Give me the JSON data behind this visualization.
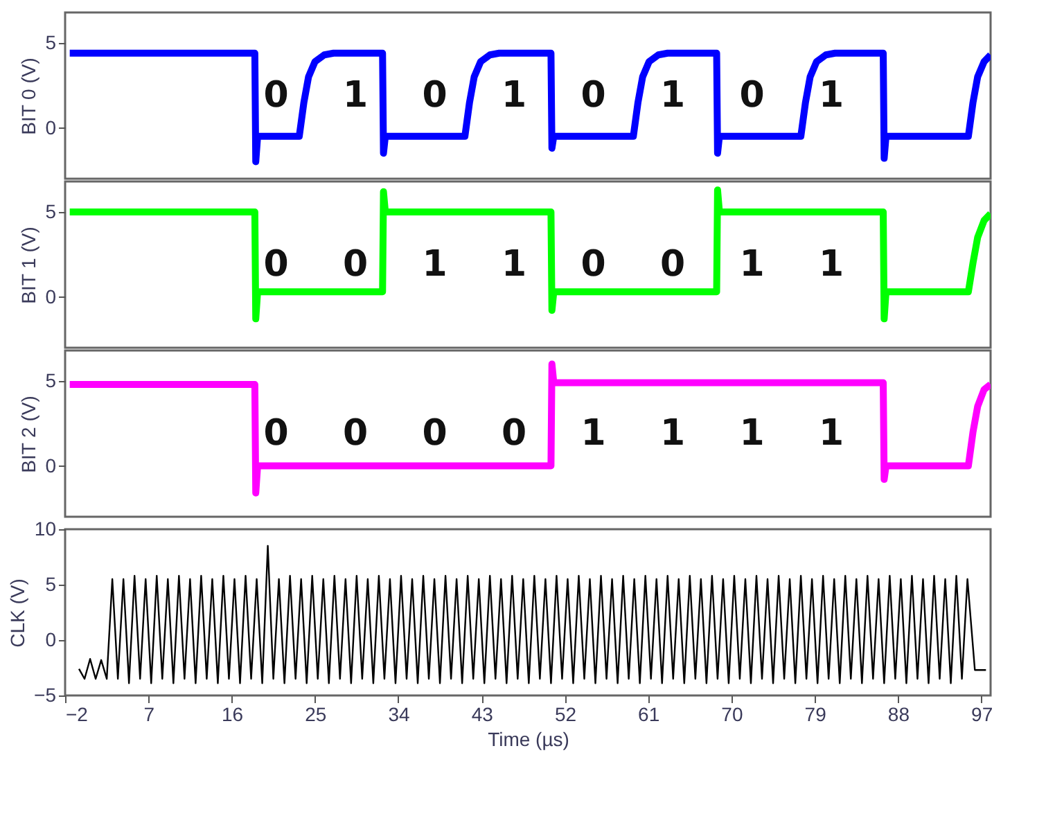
{
  "chart_data": [
    {
      "type": "line",
      "ylabel": "BIT 0 (V)",
      "xlim": [
        -2,
        98
      ],
      "ylim": [
        -3,
        6.8
      ],
      "yticks": [
        0,
        5
      ],
      "tick_labels": "y",
      "series": [
        {
          "color": "#0000ff",
          "x": [
            -1.5,
            18.5,
            18.6,
            18.8,
            23.3,
            23.8,
            24.3,
            25.0,
            26.0,
            27.0,
            32.3,
            32.4,
            32.6,
            41.2,
            41.7,
            42.2,
            42.9,
            43.9,
            44.9,
            50.5,
            50.6,
            50.8,
            59.4,
            59.9,
            60.4,
            61.1,
            62.1,
            63.1,
            68.4,
            68.5,
            68.7,
            77.5,
            78.0,
            78.5,
            79.2,
            80.2,
            81.2,
            86.4,
            86.5,
            86.7,
            95.6,
            96.1,
            96.6,
            97.3,
            98.0
          ],
          "values": [
            4.4,
            4.4,
            -2.0,
            -0.5,
            -0.5,
            1.5,
            3.0,
            3.9,
            4.3,
            4.4,
            4.4,
            -1.5,
            -0.5,
            -0.5,
            1.5,
            3.0,
            3.9,
            4.3,
            4.4,
            4.4,
            -1.2,
            -0.5,
            -0.5,
            1.5,
            3.0,
            3.9,
            4.3,
            4.4,
            4.4,
            -1.5,
            -0.5,
            -0.5,
            1.5,
            3.0,
            3.9,
            4.3,
            4.4,
            4.4,
            -1.8,
            -0.5,
            -0.5,
            1.5,
            3.0,
            3.9,
            4.3
          ]
        }
      ],
      "annotations": [
        "0",
        "1",
        "0",
        "1",
        "0",
        "1",
        "0",
        "1"
      ]
    },
    {
      "type": "line",
      "ylabel": "BIT 1 (V)",
      "xlim": [
        -2,
        98
      ],
      "ylim": [
        -3,
        6.8
      ],
      "yticks": [
        0,
        5
      ],
      "tick_labels": "y",
      "series": [
        {
          "color": "#00ff00",
          "x": [
            -1.5,
            18.5,
            18.6,
            18.8,
            32.3,
            32.4,
            32.6,
            50.5,
            50.6,
            50.8,
            68.4,
            68.5,
            68.7,
            86.4,
            86.5,
            86.7,
            95.6,
            96.1,
            96.6,
            97.3,
            98.0
          ],
          "values": [
            5.0,
            5.0,
            -1.3,
            0.3,
            0.3,
            6.2,
            5.0,
            5.0,
            -0.8,
            0.3,
            0.3,
            6.3,
            5.0,
            5.0,
            -1.3,
            0.3,
            0.3,
            2.0,
            3.5,
            4.5,
            4.9
          ]
        }
      ],
      "annotations": [
        "0",
        "0",
        "1",
        "1",
        "0",
        "0",
        "1",
        "1"
      ]
    },
    {
      "type": "line",
      "ylabel": "BIT 2 (V)",
      "xlim": [
        -2,
        98
      ],
      "ylim": [
        -3,
        6.8
      ],
      "yticks": [
        0,
        5
      ],
      "tick_labels": "y",
      "series": [
        {
          "color": "#ff00ff",
          "x": [
            -1.5,
            18.5,
            18.6,
            18.8,
            50.5,
            50.6,
            50.8,
            86.4,
            86.5,
            86.7,
            95.6,
            96.1,
            96.6,
            97.3,
            98.0
          ],
          "values": [
            4.8,
            4.8,
            -1.6,
            0.0,
            0.0,
            6.0,
            4.9,
            4.9,
            -0.8,
            0.0,
            0.0,
            2.0,
            3.5,
            4.5,
            4.8
          ]
        }
      ],
      "annotations": [
        "0",
        "0",
        "0",
        "0",
        "1",
        "1",
        "1",
        "1"
      ]
    },
    {
      "type": "line",
      "ylabel": "CLK (V)",
      "xlabel": "Time (µs)",
      "xlim": [
        -2,
        98
      ],
      "ylim": [
        -5,
        10
      ],
      "yticks": [
        -5,
        0,
        5,
        10
      ],
      "xticks": [
        -2,
        7,
        16,
        25,
        34,
        43,
        52,
        61,
        70,
        79,
        88,
        97
      ],
      "series": [
        {
          "color": "#000000",
          "x": [
            -0.5,
            0.1,
            0.7,
            1.3,
            1.9,
            2.5,
            3.1,
            3.7,
            4.3,
            4.9,
            5.5,
            6.1,
            6.7,
            7.3,
            7.9,
            8.5,
            9.1,
            9.7,
            10.3,
            10.9,
            11.5,
            12.1,
            12.7,
            13.3,
            13.9,
            14.5,
            15.1,
            15.7,
            16.3,
            16.9,
            17.5,
            18.1,
            18.7,
            19.3,
            19.9,
            20.5,
            21.1,
            21.7,
            22.3,
            22.9,
            23.5,
            24.1,
            24.7,
            25.3,
            25.9,
            26.5,
            27.1,
            27.7,
            28.3,
            28.9,
            29.5,
            30.1,
            30.7,
            31.3,
            31.9,
            32.5,
            33.1,
            33.7,
            34.3,
            34.9,
            35.5,
            36.1,
            36.7,
            37.3,
            37.9,
            38.5,
            39.1,
            39.7,
            40.3,
            40.9,
            41.5,
            42.1,
            42.7,
            43.3,
            43.9,
            44.5,
            45.1,
            45.7,
            46.3,
            46.9,
            47.5,
            48.1,
            48.7,
            49.3,
            49.9,
            50.5,
            51.1,
            51.7,
            52.3,
            52.9,
            53.5,
            54.1,
            54.7,
            55.3,
            55.9,
            56.5,
            57.1,
            57.7,
            58.3,
            58.9,
            59.5,
            60.1,
            60.7,
            61.3,
            61.9,
            62.5,
            63.1,
            63.7,
            64.3,
            64.9,
            65.5,
            66.1,
            66.7,
            67.3,
            67.9,
            68.5,
            69.1,
            69.7,
            70.3,
            70.9,
            71.5,
            72.1,
            72.7,
            73.3,
            73.9,
            74.5,
            75.1,
            75.7,
            76.3,
            76.9,
            77.5,
            78.1,
            78.7,
            79.3,
            79.9,
            80.5,
            81.1,
            81.7,
            82.3,
            82.9,
            83.5,
            84.1,
            84.7,
            85.3,
            85.9,
            86.5,
            87.1,
            87.7,
            88.3,
            88.9,
            89.5,
            90.1,
            90.7,
            91.3,
            91.9,
            92.5,
            93.1,
            93.7,
            94.3,
            94.9,
            95.5,
            96.3,
            97.5
          ],
          "values": [
            -2.6,
            -3.5,
            -1.7,
            -3.5,
            -1.8,
            -3.5,
            5.5,
            -3.5,
            5.5,
            -3.9,
            5.8,
            -3.5,
            5.5,
            -3.9,
            5.8,
            -3.5,
            5.5,
            -3.9,
            5.8,
            -3.5,
            5.5,
            -3.9,
            5.8,
            -3.5,
            5.5,
            -3.9,
            5.8,
            -3.5,
            5.5,
            -3.9,
            5.8,
            -3.5,
            5.5,
            -3.9,
            8.5,
            -3.5,
            5.5,
            -3.9,
            5.8,
            -3.5,
            5.5,
            -3.9,
            5.8,
            -3.5,
            5.5,
            -3.9,
            5.8,
            -3.5,
            5.5,
            -3.9,
            5.8,
            -3.5,
            5.5,
            -3.9,
            5.8,
            -3.5,
            5.5,
            -3.9,
            5.8,
            -3.5,
            5.5,
            -3.9,
            5.8,
            -3.5,
            5.5,
            -3.9,
            5.8,
            -3.5,
            5.5,
            -3.9,
            5.8,
            -3.5,
            5.5,
            -3.9,
            5.8,
            -3.5,
            5.5,
            -3.9,
            5.8,
            -3.5,
            5.5,
            -3.9,
            5.8,
            -3.5,
            5.5,
            -3.9,
            5.8,
            -3.5,
            5.5,
            -3.9,
            5.8,
            -3.5,
            5.5,
            -3.9,
            5.8,
            -3.5,
            5.5,
            -3.9,
            5.8,
            -3.5,
            5.5,
            -3.9,
            5.8,
            -3.5,
            5.5,
            -3.9,
            5.8,
            -3.5,
            5.5,
            -3.9,
            5.8,
            -3.5,
            5.5,
            -3.9,
            5.8,
            -3.5,
            5.5,
            -3.9,
            5.8,
            -3.5,
            5.5,
            -3.9,
            5.8,
            -3.5,
            5.5,
            -3.9,
            5.8,
            -3.5,
            5.5,
            -3.9,
            5.8,
            -3.5,
            5.5,
            -3.9,
            5.8,
            -3.5,
            5.5,
            -3.9,
            5.8,
            -3.5,
            5.5,
            -3.9,
            5.8,
            -3.5,
            5.5,
            -3.9,
            5.8,
            -3.5,
            5.5,
            -3.9,
            5.8,
            -3.5,
            5.5,
            -3.9,
            5.8,
            -3.5,
            5.5,
            -3.9,
            5.8,
            -3.5,
            5.5,
            -2.7,
            -2.7
          ]
        }
      ]
    }
  ]
}
